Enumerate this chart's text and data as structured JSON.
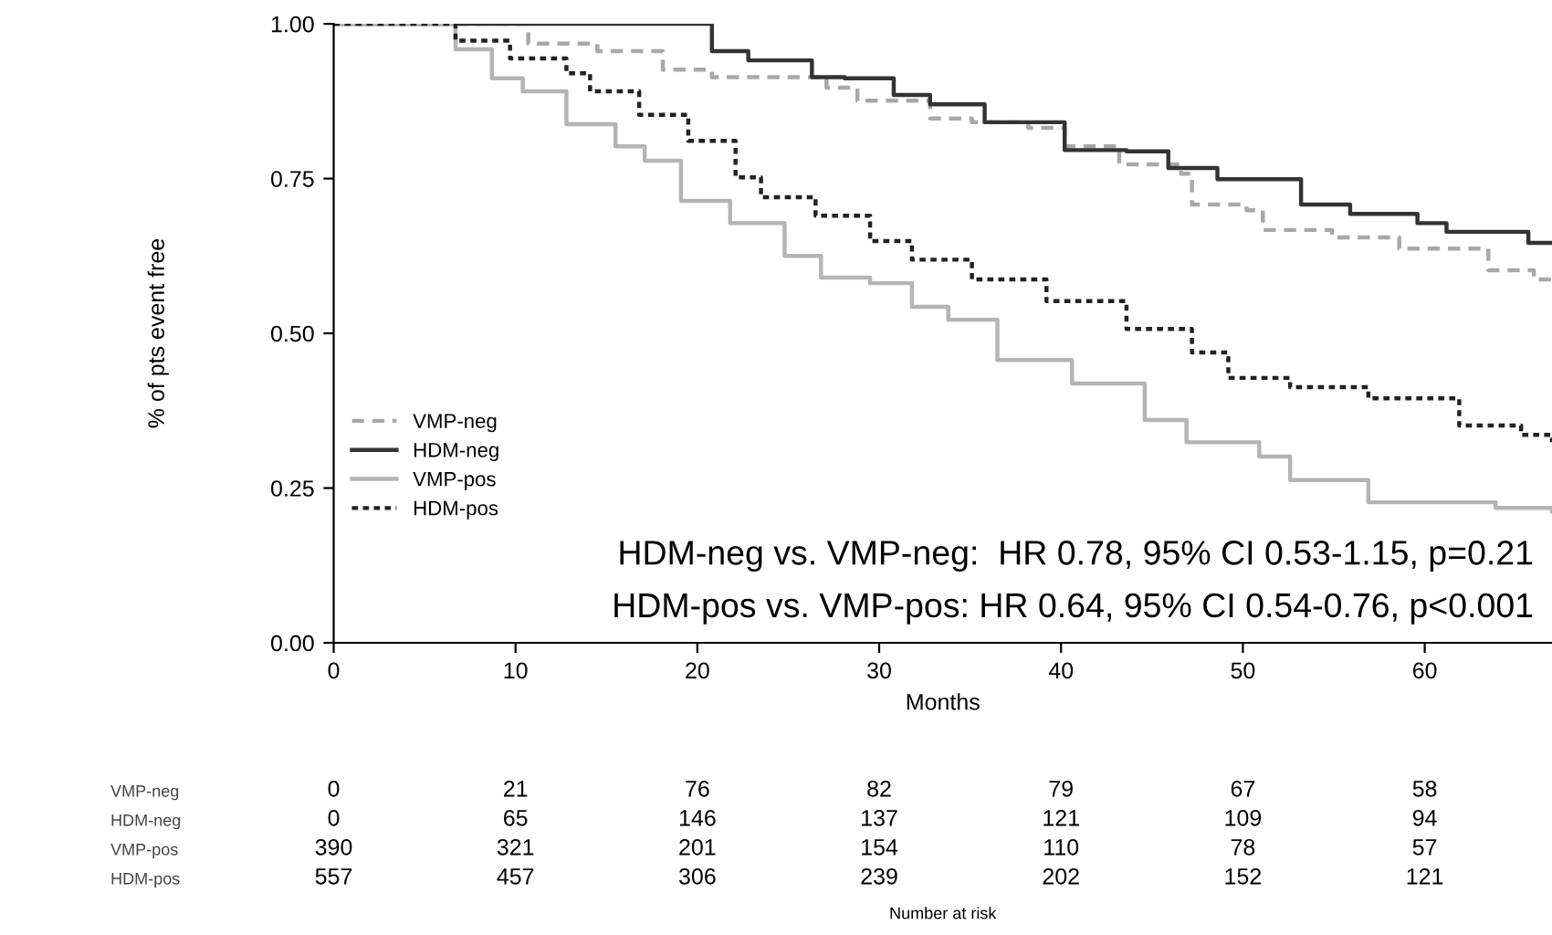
{
  "chart_data": [
    {
      "type": "step",
      "xlabel": "Months",
      "ylabel": "% of pts event free",
      "xlim": [
        0,
        67
      ],
      "ylim": [
        0,
        1
      ],
      "xticks": [
        0,
        10,
        20,
        30,
        40,
        50,
        60
      ],
      "yticks": [
        {
          "value": 0,
          "label": "0.00"
        },
        {
          "value": 0.25,
          "label": "0.25"
        },
        {
          "value": 0.5,
          "label": "0.50"
        },
        {
          "value": 0.75,
          "label": "0.75"
        },
        {
          "value": 1,
          "label": "1.00"
        }
      ],
      "legend": "bottom left",
      "grid": false,
      "series": [
        {
          "name": "VMP-neg",
          "color": "#a8a8a8",
          "line_style": "dashed",
          "x": [
            0,
            10.7,
            14.5,
            18.1,
            20.8,
            25.5,
            27.1,
            28.8,
            32.8,
            35.1,
            38.2,
            40.2,
            43.2,
            46.6,
            47.2,
            50.2,
            51.1,
            54.9,
            58.6,
            63.5,
            66,
            67
          ],
          "values": [
            1,
            0.968,
            0.956,
            0.926,
            0.914,
            0.914,
            0.897,
            0.876,
            0.847,
            0.841,
            0.832,
            0.802,
            0.773,
            0.758,
            0.708,
            0.699,
            0.667,
            0.655,
            0.637,
            0.602,
            0.587,
            0.587
          ]
        },
        {
          "name": "HDM-neg",
          "color": "#333333",
          "line_style": "solid",
          "x": [
            0,
            18,
            20.8,
            22.8,
            26.3,
            28.1,
            30.8,
            32.8,
            35.8,
            40.2,
            43.6,
            45.9,
            48.6,
            53.2,
            55.9,
            59.6,
            61.2,
            65.7,
            67
          ],
          "values": [
            1,
            1,
            0.956,
            0.941,
            0.914,
            0.912,
            0.885,
            0.87,
            0.841,
            0.796,
            0.794,
            0.767,
            0.749,
            0.708,
            0.693,
            0.678,
            0.664,
            0.646,
            0.646
          ]
        },
        {
          "name": "VMP-pos",
          "color": "#b4b4b4",
          "line_style": "solid",
          "x": [
            0,
            4.4,
            6.7,
            8.7,
            10.4,
            12.8,
            15.5,
            17.1,
            19.1,
            21.8,
            24.8,
            26.8,
            29.5,
            31.8,
            33.8,
            36.5,
            40.6,
            44.6,
            46.9,
            50.9,
            52.6,
            56.9,
            63.9,
            67
          ],
          "values": [
            1,
            1,
            0.959,
            0.912,
            0.891,
            0.838,
            0.802,
            0.779,
            0.714,
            0.678,
            0.625,
            0.59,
            0.581,
            0.543,
            0.522,
            0.457,
            0.419,
            0.36,
            0.324,
            0.301,
            0.263,
            0.227,
            0.218,
            0.212
          ]
        },
        {
          "name": "HDM-pos",
          "color": "#222222",
          "line_style": "dotted",
          "x": [
            0,
            4,
            6.7,
            9.7,
            12.8,
            14.1,
            16.8,
            19.5,
            22.1,
            23.5,
            26.5,
            29.5,
            31.8,
            35.1,
            39.2,
            43.6,
            47.2,
            49.2,
            52.6,
            56.9,
            61.9,
            65.3,
            67
          ],
          "values": [
            1,
            1,
            0.973,
            0.944,
            0.92,
            0.891,
            0.853,
            0.811,
            0.752,
            0.72,
            0.69,
            0.649,
            0.619,
            0.587,
            0.552,
            0.507,
            0.469,
            0.428,
            0.413,
            0.395,
            0.351,
            0.336,
            0.324
          ]
        }
      ],
      "annotations": [
        "HDM-neg vs. VMP-neg:  HR 0.78, 95% CI 0.53-1.15, p=0.21",
        "HDM-pos vs. VMP-pos: HR 0.64, 95% CI 0.54-0.76, p<0.001"
      ]
    },
    {
      "type": "heatmap",
      "xlabel": "Number at risk",
      "categories": [
        null,
        null,
        null,
        null,
        null,
        null,
        null
      ],
      "data_labels": true,
      "y_categories": [
        "VMP-neg",
        "HDM-neg",
        "VMP-pos",
        "HDM-pos"
      ],
      "cells": [
        [
          0,
          21,
          76,
          82,
          79,
          67,
          58
        ],
        [
          0,
          65,
          146,
          137,
          121,
          109,
          94
        ],
        [
          390,
          321,
          201,
          154,
          110,
          78,
          57
        ],
        [
          557,
          457,
          306,
          239,
          202,
          152,
          121
        ]
      ]
    }
  ]
}
